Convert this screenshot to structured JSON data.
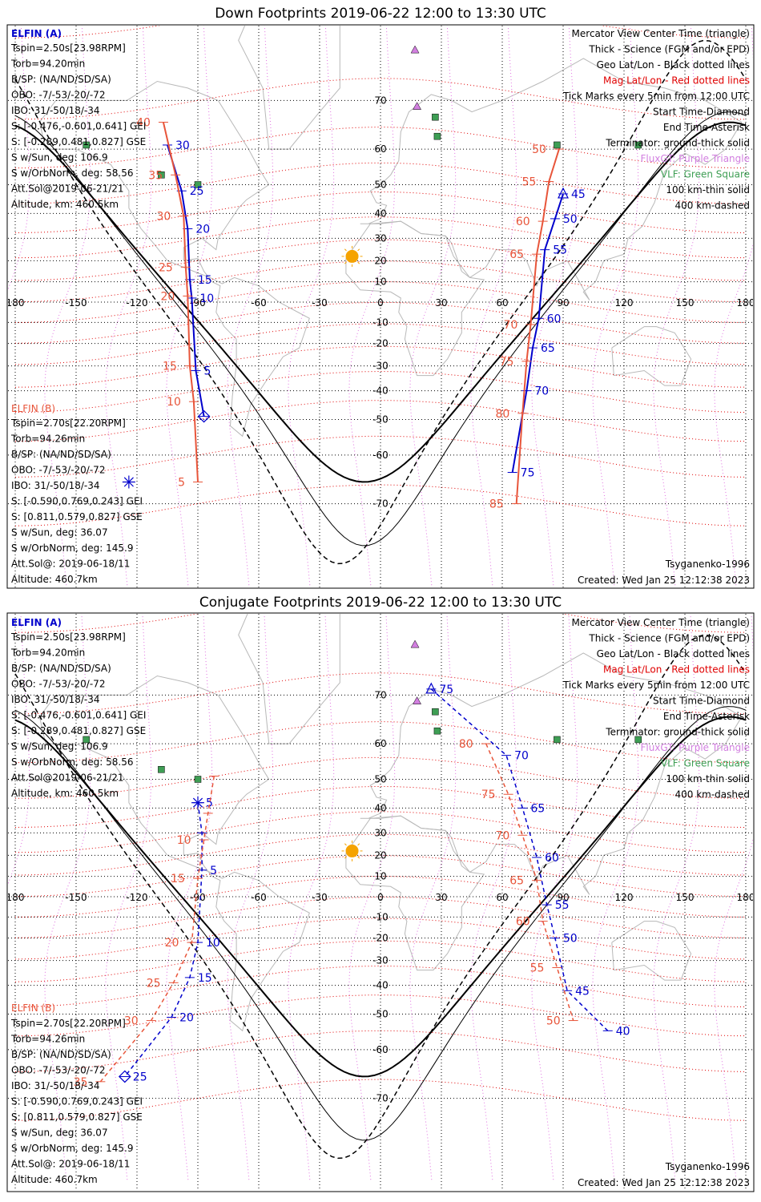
{
  "colors": {
    "elfin_a": "#0000cc",
    "elfin_b": "#e8553a",
    "mag_grid": "#e00000",
    "geo_grid": "#000000",
    "meridian": "#e070e0",
    "coast": "#b8b8b8",
    "sun": "#f5a300",
    "fluxgate": "#d27fe0",
    "vlf": "#3e9e54"
  },
  "icons": {
    "sun": "sun-icon",
    "fluxgate": "purple-triangle-icon",
    "vlf": "green-square-icon",
    "start": "diamond-icon",
    "end": "asterisk-icon",
    "center": "triangle-icon"
  },
  "chart_data": [
    {
      "type": "scatter",
      "title": "Down Footprints 2019-06-22 12:00 to 13:30 UTC",
      "projection": "mercator",
      "xlim": [
        -180,
        180
      ],
      "ylim": [
        -80,
        80
      ],
      "x_ticks": [
        "180",
        "-150",
        "-120",
        "-90",
        "-60",
        "-30",
        "0",
        "30",
        "60",
        "90",
        "120",
        "150",
        "180"
      ],
      "y_ticks": [
        "70",
        "60",
        "50",
        "40",
        "30",
        "20",
        "10",
        "0",
        "-10",
        "-20",
        "-30",
        "-40",
        "-50",
        "-60",
        "-70"
      ],
      "elfin_a": {
        "label": "ELFIN (A)",
        "info": [
          "Tspin=2.50s[23.98RPM]",
          "Torb=94.20min",
          "B/SP: (NA/ND/SD/SA)",
          "OBO: -7/-53/-20/-72",
          "IBO: 31/-50/18/-34",
          "S: [-0.476,-0.601,0.641] GEI",
          "S: [-0.289,0.481,0.827] GSE",
          "S w/Sun, deg: 106.9",
          "S w/OrbNorm, deg: 58.56",
          "Att.Sol@2019-06-21/21",
          "Altitude, km: 460.5km"
        ],
        "tracks": [
          {
            "name": "A down pass 1",
            "points": [
              {
                "label": "30",
                "lon": -105,
                "lat": 61
              },
              {
                "label": "25",
                "lon": -98,
                "lat": 48
              },
              {
                "label": "20",
                "lon": -95,
                "lat": 34
              },
              {
                "label": "15",
                "lon": -94,
                "lat": 11
              },
              {
                "label": "10",
                "lon": -93,
                "lat": 2
              },
              {
                "label": "5",
                "lon": -91,
                "lat": -32
              },
              {
                "label": "",
                "lon": -87,
                "lat": -49
              }
            ]
          },
          {
            "name": "A down pass 2",
            "points": [
              {
                "label": "45",
                "lon": 90,
                "lat": 47
              },
              {
                "label": "50",
                "lon": 86,
                "lat": 38
              },
              {
                "label": "55",
                "lon": 81,
                "lat": 25
              },
              {
                "label": "60",
                "lon": 78,
                "lat": -8
              },
              {
                "label": "65",
                "lon": 75,
                "lat": -22
              },
              {
                "label": "70",
                "lon": 72,
                "lat": -40
              },
              {
                "label": "75",
                "lon": 65,
                "lat": -64
              }
            ]
          }
        ]
      },
      "elfin_b": {
        "label": "ELFIN (B)",
        "info": [
          "Tspin=2.70s[22.20RPM]",
          "Torb=94.26min",
          "B/SP: (NA/ND/SD/SA)",
          "OBO: -7/-53/-20/-72",
          "IBO: 31/-50/18/-34",
          "S: [-0.590,0.769,0.243] GEI",
          "S: [0.811,0.579,0.827] GSE",
          "S w/Sun, deg: 36.07",
          "S w/OrbNorm, deg: 145.9",
          "Att.Sol@: 2019-06-18/11",
          "Altitude: 460.7km"
        ],
        "tracks": [
          {
            "name": "B down pass 1",
            "points": [
              {
                "label": "40",
                "lon": -107,
                "lat": 66
              },
              {
                "label": "35",
                "lon": -101,
                "lat": 53
              },
              {
                "label": "30",
                "lon": -97,
                "lat": 39
              },
              {
                "label": "25",
                "lon": -96,
                "lat": 17
              },
              {
                "label": "20",
                "lon": -95,
                "lat": 3
              },
              {
                "label": "15",
                "lon": -94,
                "lat": -30
              },
              {
                "label": "10",
                "lon": -92,
                "lat": -44
              },
              {
                "label": "5",
                "lon": -90,
                "lat": -66
              }
            ]
          },
          {
            "name": "B down pass 2",
            "points": [
              {
                "label": "50",
                "lon": 88,
                "lat": 60
              },
              {
                "label": "55",
                "lon": 83,
                "lat": 51
              },
              {
                "label": "60",
                "lon": 80,
                "lat": 37
              },
              {
                "label": "65",
                "lon": 77,
                "lat": 23
              },
              {
                "label": "70",
                "lon": 74,
                "lat": -11
              },
              {
                "label": "75",
                "lon": 72,
                "lat": -28
              },
              {
                "label": "80",
                "lon": 70,
                "lat": -48
              },
              {
                "label": "85",
                "lon": 67,
                "lat": -70
              }
            ]
          }
        ]
      },
      "legend": [
        "Mercator View Center Time (triangle)",
        "Thick - Science (FGM and/or EPD)",
        "Geo Lat/Lon - Black dotted lines",
        "Mag Lat/Lon - Red dotted lines",
        "Tick Marks every 5min from 12:00 UTC",
        "Start Time-Diamond",
        "End Time-Asterisk",
        "Terminator: ground-thick solid",
        "FluxGT: Purple Triangle",
        "VLF: Green Square",
        "100 km-thin solid",
        "400 km-dashed"
      ],
      "footer_left": "Tsyganenko-1996",
      "footer_right": "Created: Wed Jan 25 12:12:38 2023"
    },
    {
      "type": "scatter",
      "title": "Conjugate Footprints 2019-06-22 12:00 to 13:30 UTC",
      "projection": "mercator",
      "xlim": [
        -180,
        180
      ],
      "ylim": [
        -80,
        80
      ],
      "x_ticks": [
        "180",
        "-150",
        "-120",
        "-90",
        "-60",
        "-30",
        "0",
        "30",
        "60",
        "90",
        "120",
        "150",
        "180"
      ],
      "y_ticks": [
        "70",
        "60",
        "50",
        "40",
        "30",
        "20",
        "10",
        "0",
        "-10",
        "-20",
        "-30",
        "-40",
        "-50",
        "-60",
        "-70"
      ],
      "elfin_a": {
        "label": "ELFIN (A)",
        "info": [
          "Tspin=2.50s[23.98RPM]",
          "Torb=94.20min",
          "B/SP: (NA/ND/SD/SA)",
          "OBO: -7/-53/-20/-72",
          "IBO: 31/-50/18/-34",
          "S: [-0.476,-0.601,0.641] GEI",
          "S: [-0.289,0.481,0.827] GSE",
          "S w/Sun, deg: 106.9",
          "S w/OrbNorm, deg: 58.56",
          "Att.Sol@2019-06-21/21",
          "Altitude, km: 460.5km"
        ],
        "tracks": [
          {
            "name": "A conjugate pass 1",
            "points": [
              {
                "label": "5",
                "lon": -90,
                "lat": 42
              },
              {
                "label": "",
                "lon": -88,
                "lat": 30
              },
              {
                "label": "5",
                "lon": -88,
                "lat": 13
              },
              {
                "label": "10",
                "lon": -90,
                "lat": -22
              },
              {
                "label": "15",
                "lon": -94,
                "lat": -37
              },
              {
                "label": "20",
                "lon": -103,
                "lat": -51
              },
              {
                "label": "25",
                "lon": -126,
                "lat": -66
              }
            ]
          },
          {
            "name": "A conjugate pass 2",
            "points": [
              {
                "label": "75",
                "lon": 25,
                "lat": 71
              },
              {
                "label": "70",
                "lon": 62,
                "lat": 57
              },
              {
                "label": "65",
                "lon": 70,
                "lat": 40
              },
              {
                "label": "60",
                "lon": 77,
                "lat": 19
              },
              {
                "label": "55",
                "lon": 82,
                "lat": -4
              },
              {
                "label": "50",
                "lon": 86,
                "lat": -20
              },
              {
                "label": "45",
                "lon": 92,
                "lat": -42
              },
              {
                "label": "40",
                "lon": 112,
                "lat": -55
              }
            ]
          }
        ]
      },
      "elfin_b": {
        "label": "ELFIN (B)",
        "info": [
          "Tspin=2.70s[22.20RPM]",
          "Torb=94.26min",
          "B/SP: (NA/ND/SD/SA)",
          "OBO: -7/-53/-20/-72",
          "IBO: 31/-50/18/-34",
          "S: [-0.590,0.769,0.243] GEI",
          "S: [0.811,0.579,0.827] GSE",
          "S w/Sun, deg: 36.07",
          "S w/OrbNorm, deg: 145.9",
          "Att.Sol@: 2019-06-18/11",
          "Altitude: 460.7km"
        ],
        "tracks": [
          {
            "name": "B conjugate pass 1",
            "points": [
              {
                "label": "",
                "lon": -82,
                "lat": 51
              },
              {
                "label": "",
                "lon": -85,
                "lat": 38
              },
              {
                "label": "10",
                "lon": -87,
                "lat": 27
              },
              {
                "label": "15",
                "lon": -90,
                "lat": 9
              },
              {
                "label": "20",
                "lon": -93,
                "lat": -22
              },
              {
                "label": "25",
                "lon": -102,
                "lat": -39
              },
              {
                "label": "30",
                "lon": -113,
                "lat": -52
              },
              {
                "label": "35",
                "lon": -138,
                "lat": -67
              }
            ]
          },
          {
            "name": "B conjugate pass 2",
            "points": [
              {
                "label": "80",
                "lon": 52,
                "lat": 60
              },
              {
                "label": "75",
                "lon": 63,
                "lat": 45
              },
              {
                "label": "70",
                "lon": 70,
                "lat": 29
              },
              {
                "label": "65",
                "lon": 77,
                "lat": 8
              },
              {
                "label": "60",
                "lon": 80,
                "lat": -12
              },
              {
                "label": "55",
                "lon": 87,
                "lat": -33
              },
              {
                "label": "50",
                "lon": 95,
                "lat": -52
              }
            ]
          }
        ]
      },
      "legend": [
        "Mercator View Center Time (triangle)",
        "Thick - Science (FGM and/or EPD)",
        "Geo Lat/Lon - Black dotted lines",
        "Mag Lat/Lon - Red dotted lines",
        "Tick Marks every 5min from 12:00 UTC",
        "Start Time-Diamond",
        "End Time-Asterisk",
        "Terminator: ground-thick solid",
        "FluxGT: Purple Triangle",
        "VLF: Green Square",
        "100 km-thin solid",
        "400 km-dashed"
      ],
      "footer_left": "Tsyganenko-1996",
      "footer_right": "Created: Wed Jan 25 12:12:38 2023"
    }
  ]
}
